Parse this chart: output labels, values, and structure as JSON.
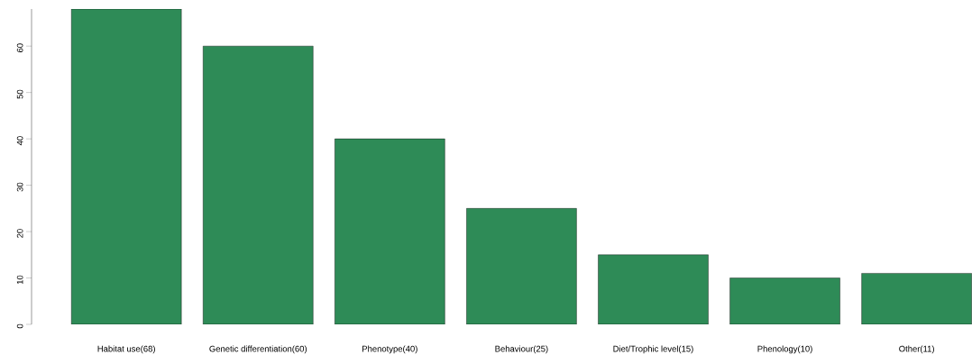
{
  "chart_data": {
    "type": "bar",
    "categories": [
      "Habitat use(68)",
      "Genetic differentiation(60)",
      "Phenotype(40)",
      "Behaviour(25)",
      "Diet/Trophic level(15)",
      "Phenology(10)",
      "Other(11)"
    ],
    "values": [
      68,
      60,
      40,
      25,
      15,
      10,
      11
    ],
    "color": "#2e8b57",
    "ylim": [
      0,
      68
    ],
    "yticks": [
      0,
      10,
      20,
      30,
      40,
      50,
      60
    ]
  }
}
